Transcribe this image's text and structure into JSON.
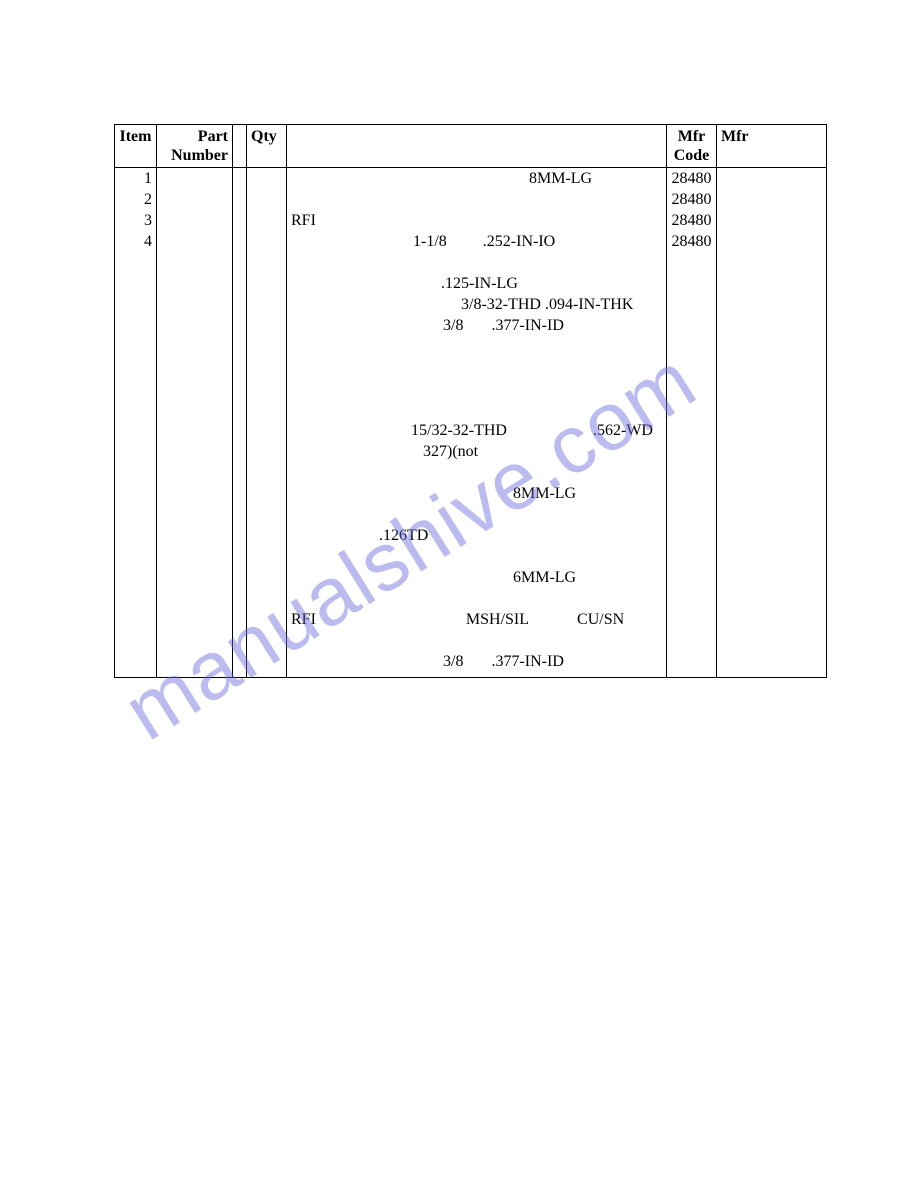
{
  "watermark": "manualshive.com",
  "table": {
    "headers": {
      "item": "Item",
      "part": "Part Number",
      "qty": "Qty",
      "mfrcode": "Mfr Code",
      "mfr": "Mfr"
    },
    "rows": [
      {
        "item": "1",
        "desc_parts": [
          {
            "t": "8MM-LG",
            "ml": 238
          }
        ],
        "mfrcode": "28480"
      },
      {
        "item": "2",
        "desc_parts": [],
        "mfrcode": "28480"
      },
      {
        "item": "3",
        "desc_parts": [
          {
            "t": "RFI",
            "ml": 0
          }
        ],
        "mfrcode": "28480"
      },
      {
        "item": "4",
        "desc_parts": [
          {
            "t": "1-1/8",
            "ml": 122
          },
          {
            "t": ".252-IN-IO",
            "ml": 36
          }
        ],
        "mfrcode": "28480"
      },
      {
        "item": "",
        "desc_parts": [],
        "mfrcode": ""
      },
      {
        "item": "",
        "desc_parts": [
          {
            "t": ".125-IN-LG",
            "ml": 150
          }
        ],
        "mfrcode": ""
      },
      {
        "item": "",
        "desc_parts": [
          {
            "t": "3/8-32-THD .094-IN-THK",
            "ml": 170
          }
        ],
        "mfrcode": ""
      },
      {
        "item": "",
        "desc_parts": [
          {
            "t": "3/8",
            "ml": 152
          },
          {
            "t": ".377-IN-ID",
            "ml": 28
          }
        ],
        "mfrcode": ""
      },
      {
        "item": "",
        "desc_parts": [],
        "mfrcode": ""
      },
      {
        "item": "",
        "desc_parts": [],
        "mfrcode": ""
      },
      {
        "item": "",
        "desc_parts": [],
        "mfrcode": ""
      },
      {
        "item": "",
        "desc_parts": [],
        "mfrcode": ""
      },
      {
        "item": "",
        "desc_parts": [
          {
            "t": "15/32-32-THD",
            "ml": 120
          },
          {
            "t": ".562-WD",
            "ml": 86
          }
        ],
        "mfrcode": ""
      },
      {
        "item": "",
        "desc_parts": [
          {
            "t": "327)(not",
            "ml": 132
          }
        ],
        "mfrcode": ""
      },
      {
        "item": "",
        "desc_parts": [],
        "mfrcode": ""
      },
      {
        "item": "",
        "desc_parts": [
          {
            "t": "8MM-LG",
            "ml": 222
          }
        ],
        "mfrcode": ""
      },
      {
        "item": "",
        "desc_parts": [],
        "mfrcode": ""
      },
      {
        "item": "",
        "desc_parts": [
          {
            "t": ".126TD",
            "ml": 88
          }
        ],
        "mfrcode": ""
      },
      {
        "item": "",
        "desc_parts": [],
        "mfrcode": ""
      },
      {
        "item": "",
        "desc_parts": [
          {
            "t": "6MM-LG",
            "ml": 222
          }
        ],
        "mfrcode": ""
      },
      {
        "item": "",
        "desc_parts": [],
        "mfrcode": ""
      },
      {
        "item": "",
        "desc_parts": [
          {
            "t": "RFI",
            "ml": 0
          },
          {
            "t": "MSH/SIL",
            "ml": 150
          },
          {
            "t": "CU/SN",
            "ml": 48
          }
        ],
        "mfrcode": ""
      },
      {
        "item": "",
        "desc_parts": [],
        "mfrcode": ""
      },
      {
        "item": "",
        "desc_parts": [
          {
            "t": "3/8",
            "ml": 152
          },
          {
            "t": ".377-IN-ID",
            "ml": 28
          }
        ],
        "mfrcode": ""
      }
    ]
  }
}
